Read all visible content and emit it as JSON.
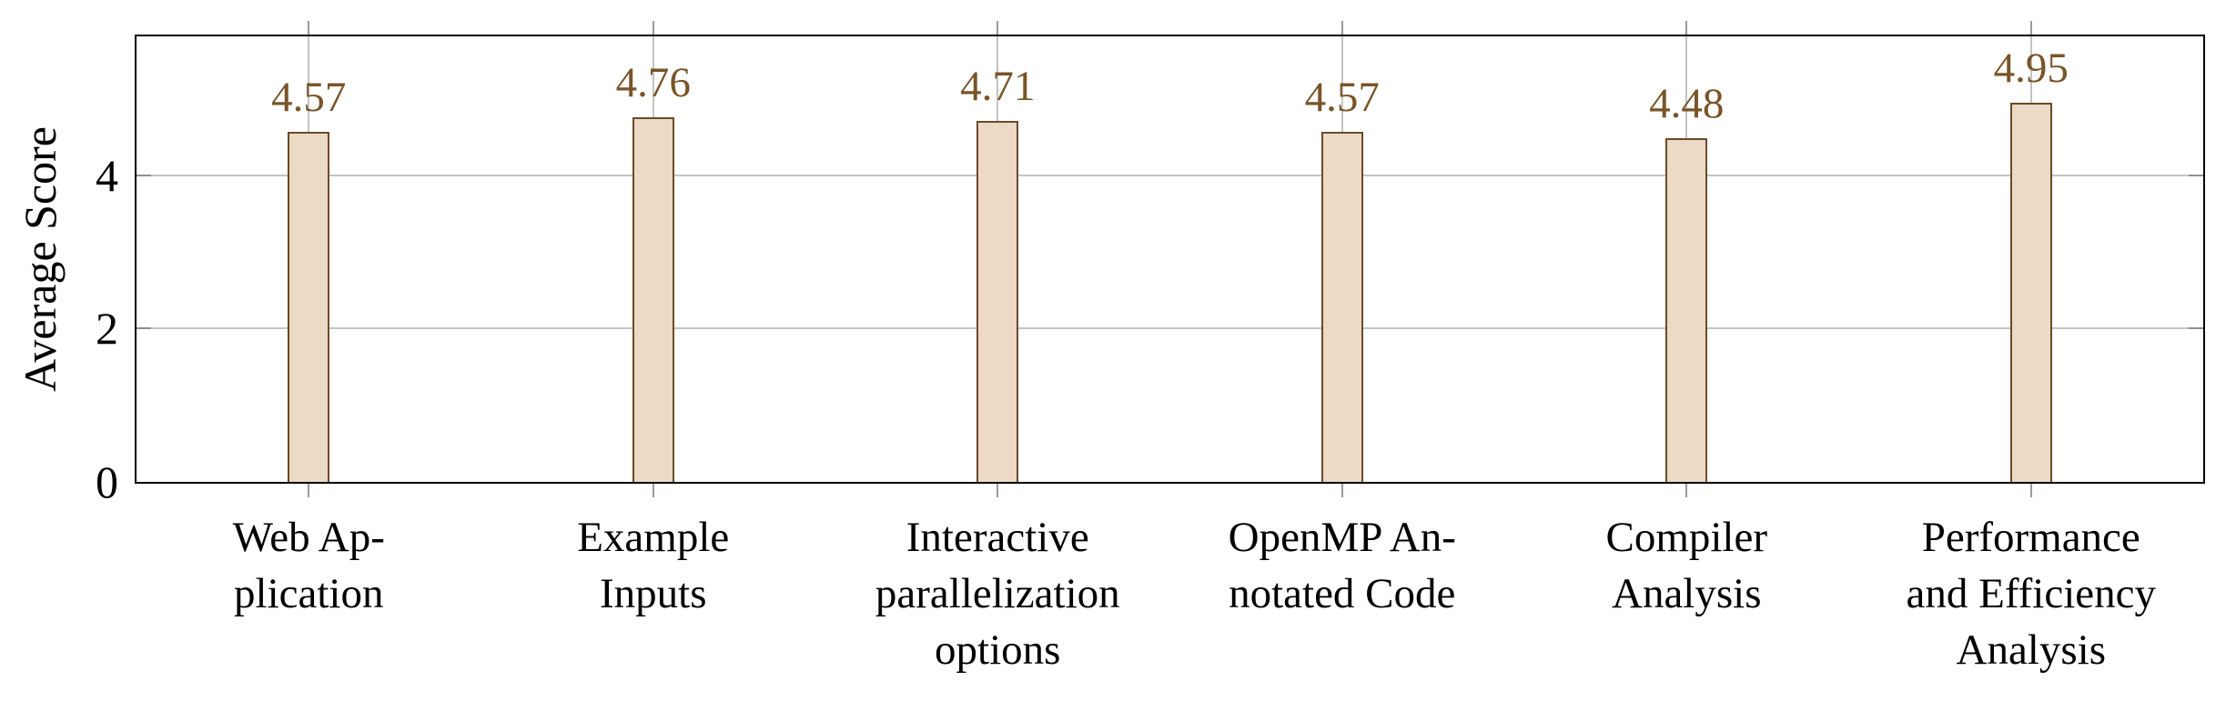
{
  "figure": {
    "background": "#ffffff"
  },
  "chart_data": {
    "type": "bar",
    "title": "",
    "xlabel": "",
    "ylabel": "Average Score",
    "categories": [
      "Web Application",
      "Example Inputs",
      "Interactive parallelization options",
      "OpenMP Annotated Code",
      "Compiler Analysis",
      "Performance and Efficiency Analysis"
    ],
    "categories_display": [
      [
        "Web Ap-",
        "plication"
      ],
      [
        "Example",
        "Inputs"
      ],
      [
        "Interactive",
        "parallelization",
        "options"
      ],
      [
        "OpenMP An-",
        "notated Code"
      ],
      [
        "Compiler",
        "Analysis"
      ],
      [
        "Performance",
        "and Efficiency",
        "Analysis"
      ]
    ],
    "values": [
      4.57,
      4.76,
      4.71,
      4.57,
      4.48,
      4.95
    ],
    "value_labels": [
      "4.57",
      "4.76",
      "4.71",
      "4.57",
      "4.48",
      "4.95"
    ],
    "yticks": [
      {
        "value": 0,
        "label": "0"
      },
      {
        "value": 2,
        "label": "2"
      },
      {
        "value": 4,
        "label": "4"
      }
    ],
    "ylim": [
      0,
      5.81
    ],
    "grid": "on",
    "legend": "none",
    "colors": {
      "bar_fill": "#ecd9c6",
      "bar_border": "#6b4a28",
      "value_label": "#785428",
      "grid": "#c4c4c4",
      "axis": "#000000"
    }
  }
}
